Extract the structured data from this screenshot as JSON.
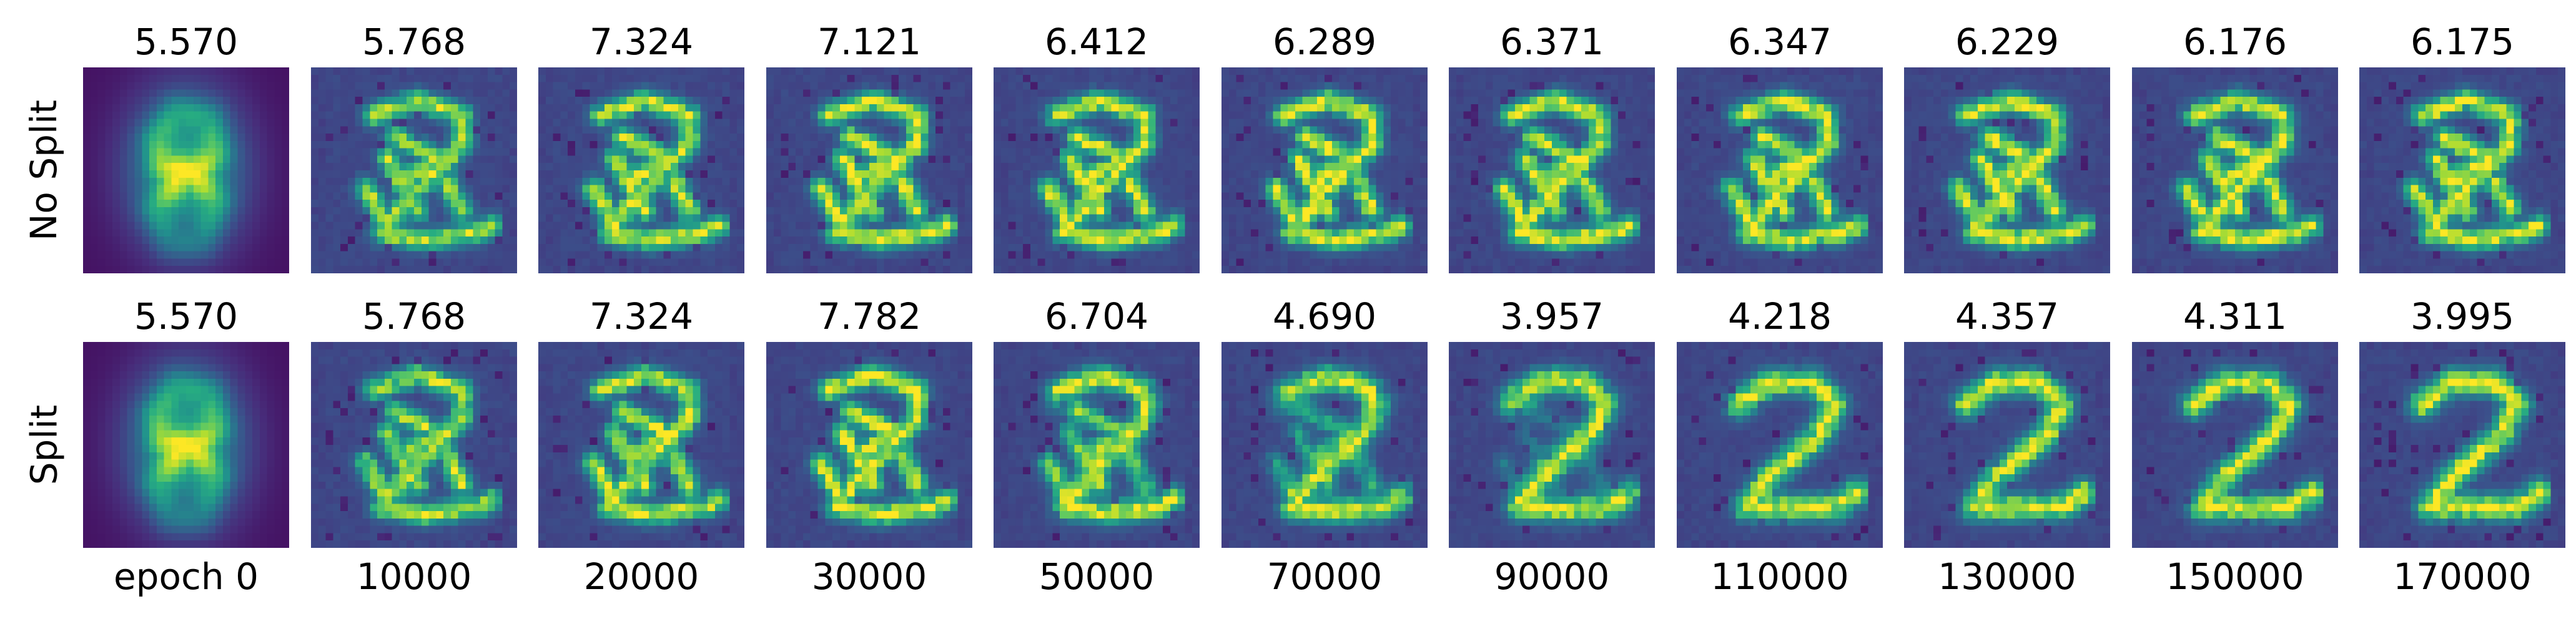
{
  "chart_data": {
    "type": "heatmap",
    "colormap": "viridis",
    "rows": [
      {
        "label": "No Split",
        "values": [
          "5.570",
          "5.768",
          "7.324",
          "7.121",
          "6.412",
          "6.289",
          "6.371",
          "6.347",
          "6.229",
          "6.176",
          "6.175"
        ]
      },
      {
        "label": "Split",
        "values": [
          "5.570",
          "5.768",
          "7.324",
          "7.782",
          "6.704",
          "4.690",
          "3.957",
          "4.218",
          "4.357",
          "4.311",
          "3.995"
        ]
      }
    ],
    "columns": [
      "epoch 0",
      "10000",
      "20000",
      "30000",
      "50000",
      "70000",
      "90000",
      "110000",
      "130000",
      "150000",
      "170000"
    ]
  }
}
